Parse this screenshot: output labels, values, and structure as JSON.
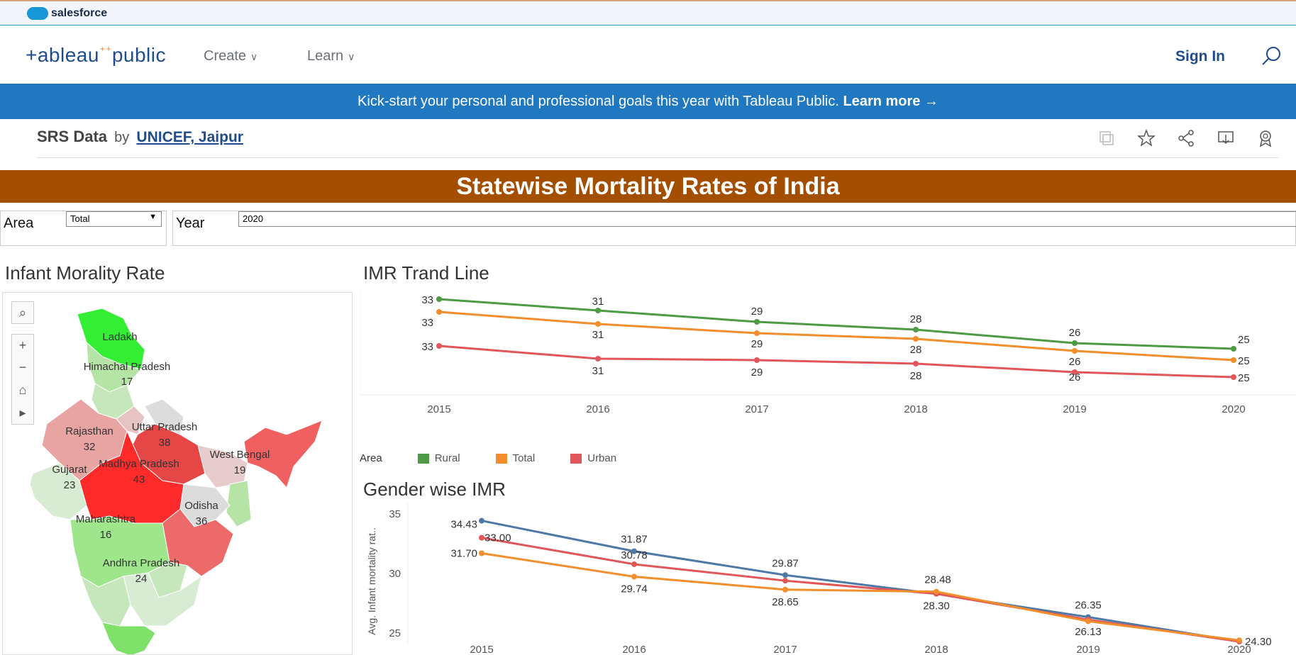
{
  "salesforce": {
    "label": "salesforce"
  },
  "nav": {
    "logo_text": "+ableau",
    "logo_suffix": "public",
    "create_label": "Create",
    "learn_label": "Learn",
    "signin_label": "Sign In"
  },
  "banner": {
    "text": "Kick-start your personal and professional goals this year with Tableau Public.",
    "link": "Learn more →"
  },
  "workbook": {
    "title": "SRS Data",
    "by": "by",
    "author": "UNICEF, Jaipur"
  },
  "dashboard": {
    "title": "Statewise Mortality Rates of India",
    "area_label": "Area",
    "area_value": "Total",
    "year_label": "Year",
    "year_value": "2020",
    "map_title": "Infant Morality Rate",
    "trend_title": "IMR Trand Line",
    "gender_title": "Gender wise IMR",
    "legend_title": "Area"
  },
  "map_labels": [
    {
      "name": "Ladakh",
      "value": ""
    },
    {
      "name": "Himachal Pradesh",
      "value": "17"
    },
    {
      "name": "Rajasthan",
      "value": "32"
    },
    {
      "name": "Uttar Pradesh",
      "value": "38"
    },
    {
      "name": "West Bengal",
      "value": "19"
    },
    {
      "name": "Gujarat",
      "value": "23"
    },
    {
      "name": "Madhya Pradesh",
      "value": "43"
    },
    {
      "name": "Odisha",
      "value": "36"
    },
    {
      "name": "Maharashtra",
      "value": "16"
    },
    {
      "name": "Andhra Pradesh",
      "value": "24"
    }
  ],
  "chart_data": [
    {
      "type": "line",
      "title": "IMR Trand Line",
      "x": [
        "2015",
        "2016",
        "2017",
        "2018",
        "2019",
        "2020"
      ],
      "series": [
        {
          "name": "Rural",
          "color": "#4e9a45",
          "values": [
            33,
            31,
            29,
            28,
            26,
            25
          ]
        },
        {
          "name": "Total",
          "color": "#f28e2b",
          "values": [
            33,
            31,
            29,
            28,
            26,
            25
          ]
        },
        {
          "name": "Urban",
          "color": "#e15759",
          "values": [
            33,
            31,
            29,
            28,
            26,
            25
          ]
        }
      ]
    },
    {
      "type": "line",
      "title": "Gender wise IMR",
      "ylabel": "Avg. Infant mortality rat..",
      "ylim": [
        24,
        35
      ],
      "yticks": [
        "35",
        "30",
        "25"
      ],
      "x": [
        "2015",
        "2016",
        "2017",
        "2018",
        "2019",
        "2020"
      ],
      "series": [
        {
          "color": "#4e79a7",
          "values": [
            34.43,
            31.87,
            29.87,
            28.3,
            26.35,
            24.3
          ],
          "labels": [
            "34.43",
            "31.87",
            "29.87",
            "",
            "26.35",
            "24.30"
          ]
        },
        {
          "color": "#e15759",
          "values": [
            33.0,
            30.78,
            29.4,
            28.3,
            26.13,
            24.3
          ],
          "labels": [
            "33.00",
            "30.78",
            "",
            "28.30",
            "26.13",
            ""
          ]
        },
        {
          "color": "#f28e2b",
          "values": [
            31.7,
            29.74,
            28.65,
            28.48,
            26.0,
            24.4
          ],
          "labels": [
            "31.70",
            "29.74",
            "28.65",
            "28.48",
            "",
            ""
          ]
        }
      ]
    }
  ]
}
